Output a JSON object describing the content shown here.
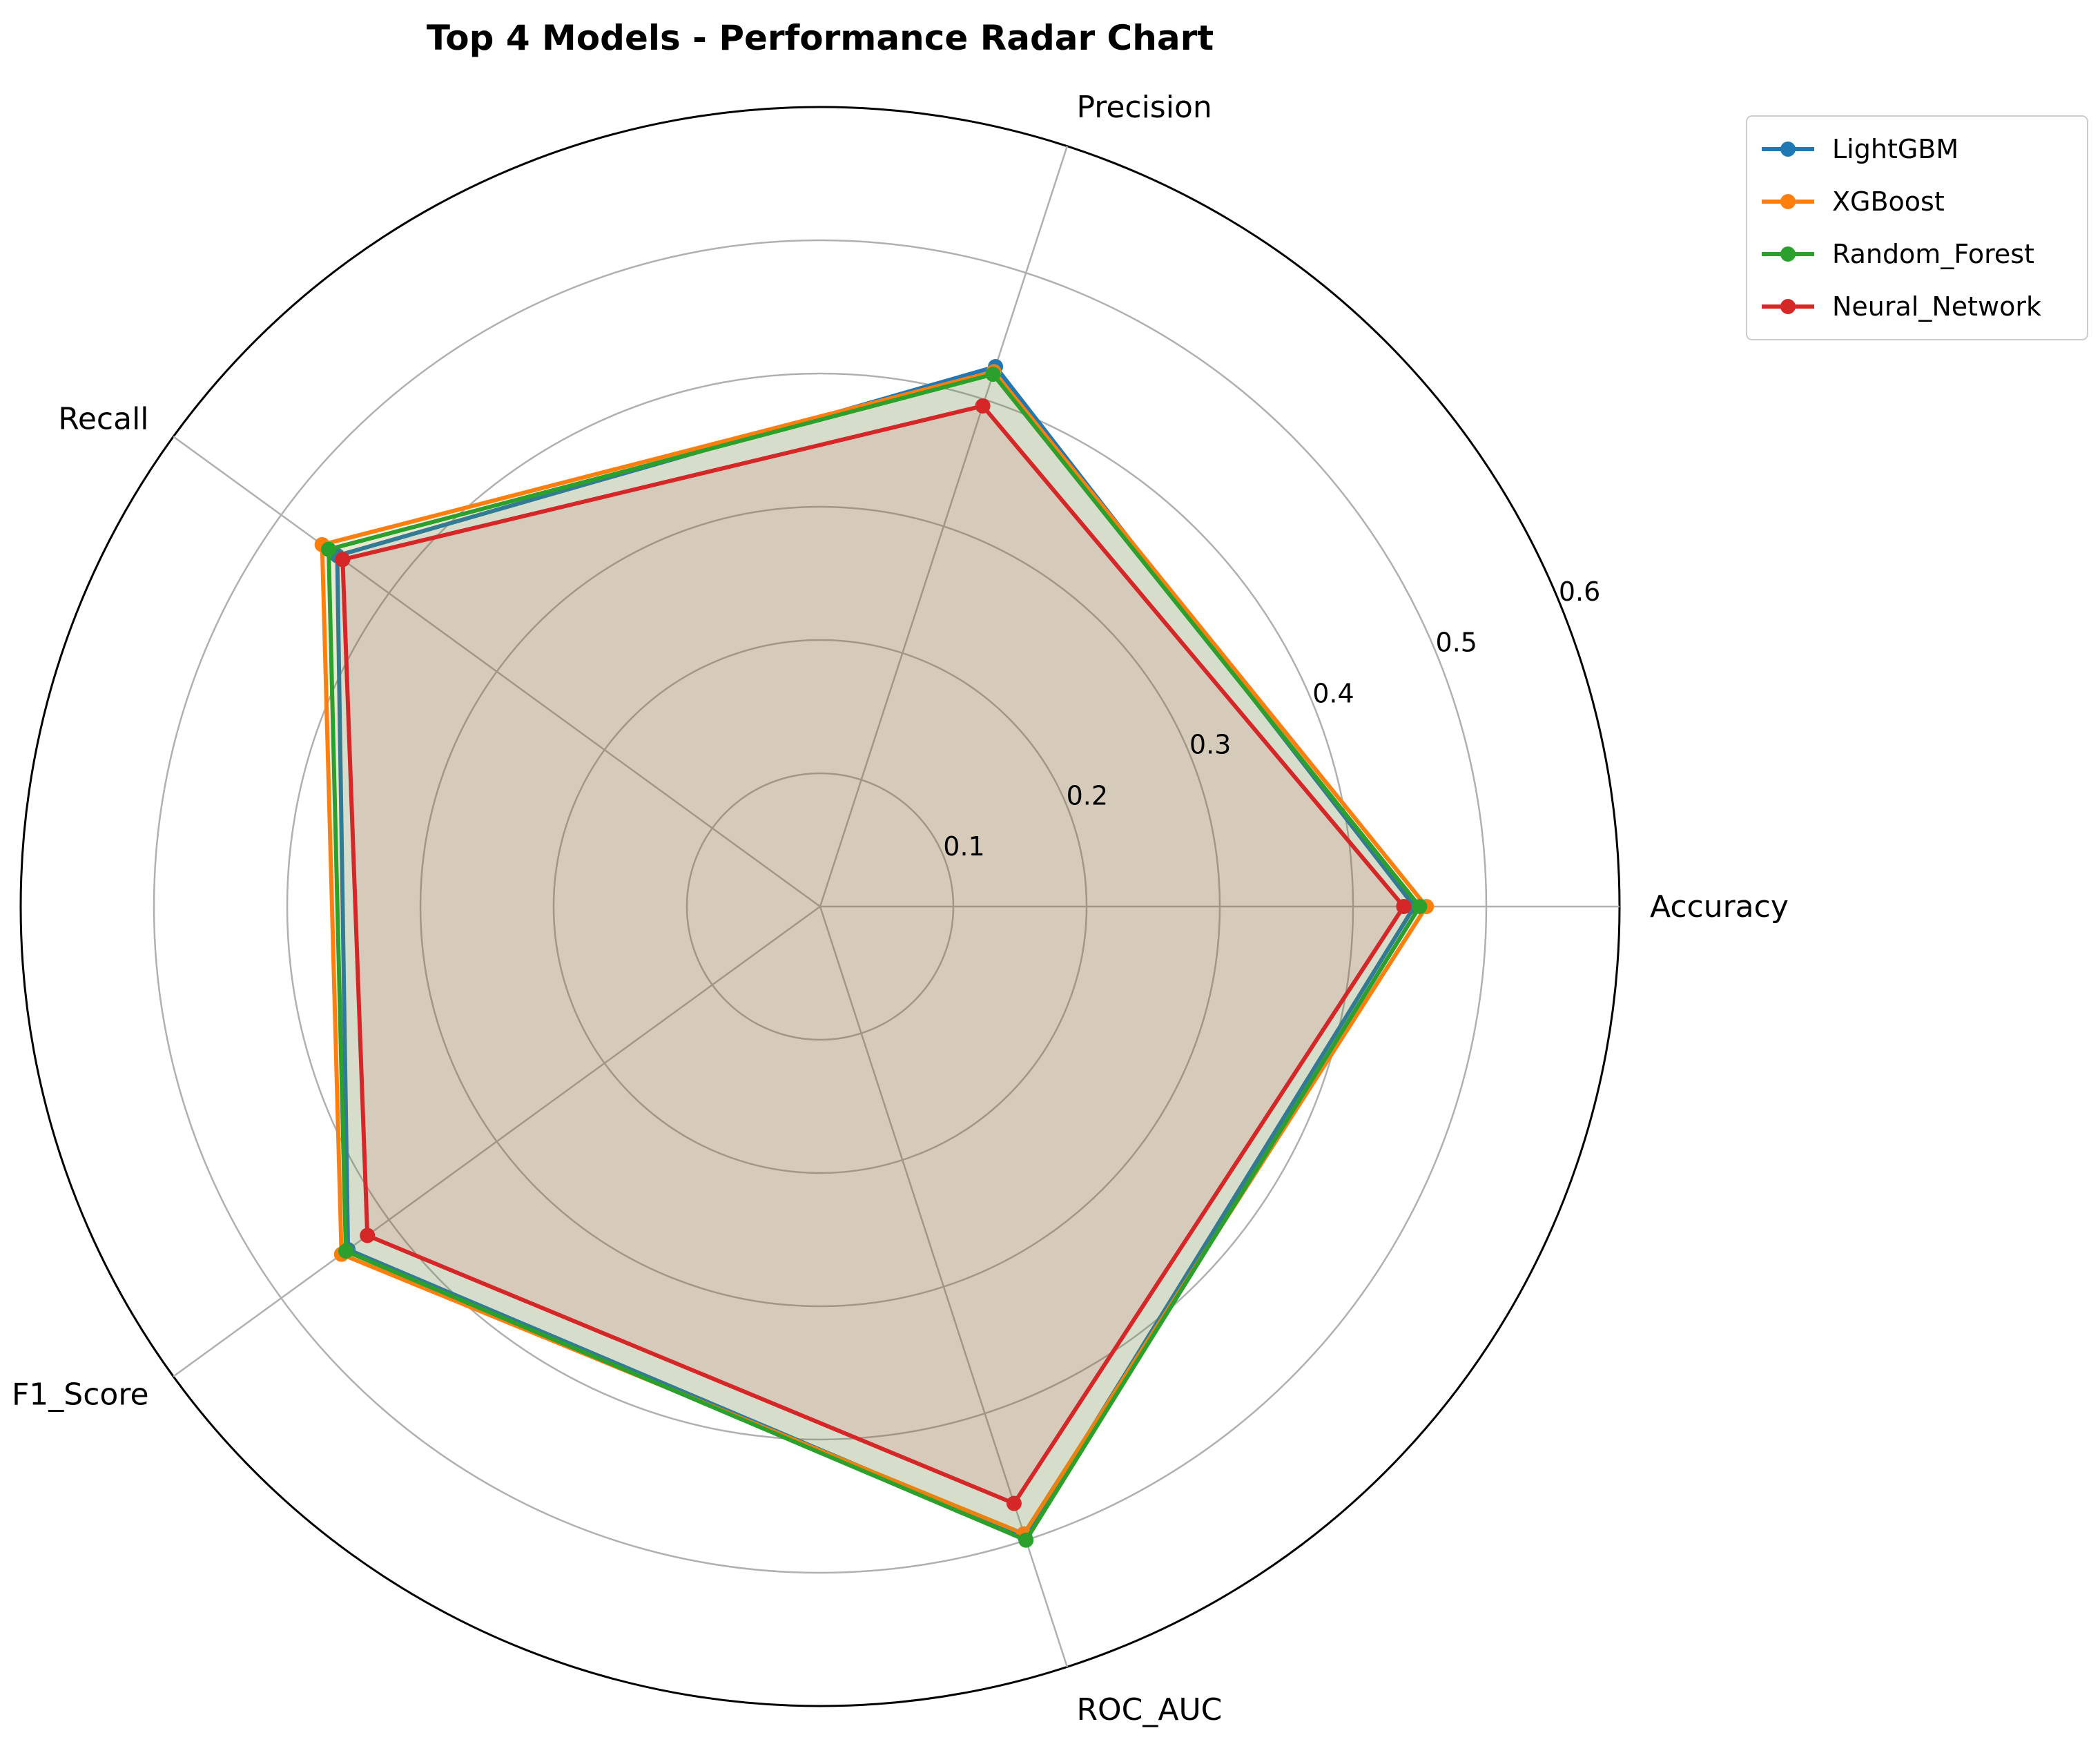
{
  "chart_data": {
    "type": "radar",
    "title": "Top 4 Models - Performance Radar Chart",
    "axes": [
      "Accuracy",
      "Precision",
      "Recall",
      "F1_Score",
      "ROC_AUC"
    ],
    "rlim": [
      0,
      0.6
    ],
    "rticks": [
      0.1,
      0.2,
      0.3,
      0.4,
      0.5,
      0.6
    ],
    "rtick_labels": [
      "0.1",
      "0.2",
      "0.3",
      "0.4",
      "0.5",
      "0.6"
    ],
    "grid": true,
    "legend_position": "top-right outside",
    "series": [
      {
        "name": "LightGBM",
        "color": "#1f77b4",
        "values": [
          0.446,
          0.426,
          0.448,
          0.438,
          0.497
        ]
      },
      {
        "name": "XGBoost",
        "color": "#ff7f0e",
        "values": [
          0.455,
          0.422,
          0.462,
          0.444,
          0.495
        ]
      },
      {
        "name": "Random_Forest",
        "color": "#2ca02c",
        "values": [
          0.45,
          0.42,
          0.456,
          0.44,
          0.5
        ]
      },
      {
        "name": "Neural_Network",
        "color": "#d62728",
        "values": [
          0.438,
          0.395,
          0.443,
          0.42,
          0.471
        ]
      }
    ]
  }
}
